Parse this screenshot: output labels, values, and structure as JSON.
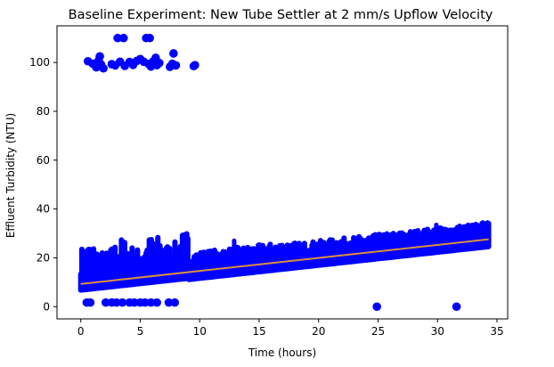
{
  "chart_data": {
    "type": "scatter",
    "title": "Baseline Experiment: New Tube Settler at 2 mm/s Upflow Velocity",
    "xlabel": "Time (hours)",
    "ylabel": "Effluent Turbidity (NTU)",
    "xlim": [
      -2.0,
      35.9
    ],
    "ylim": [
      -5,
      115
    ],
    "xticks": [
      0,
      5,
      10,
      15,
      20,
      25,
      30,
      35
    ],
    "xtick_labels": [
      "0",
      "5",
      "10",
      "15",
      "20",
      "25",
      "30",
      "35"
    ],
    "yticks": [
      0,
      20,
      40,
      60,
      80,
      100
    ],
    "ytick_labels": [
      "0",
      "20",
      "40",
      "60",
      "80",
      "100"
    ],
    "grid": false,
    "legend": "none",
    "series": [
      {
        "role": "measurements",
        "color": "#0000ff",
        "marker": "circle",
        "points": [
          [
            0.6,
            100.5
          ],
          [
            1.0,
            99.5
          ],
          [
            1.3,
            98.0
          ],
          [
            1.5,
            100.8
          ],
          [
            1.6,
            102.5
          ],
          [
            1.7,
            99.2
          ],
          [
            1.9,
            97.6
          ],
          [
            2.6,
            99.3
          ],
          [
            2.9,
            98.8
          ],
          [
            3.1,
            110.0
          ],
          [
            3.3,
            100.3
          ],
          [
            3.6,
            110.0
          ],
          [
            3.7,
            98.6
          ],
          [
            4.1,
            100.2
          ],
          [
            4.4,
            99.0
          ],
          [
            4.7,
            100.6
          ],
          [
            5.0,
            101.4
          ],
          [
            5.3,
            100.3
          ],
          [
            5.5,
            110.0
          ],
          [
            5.7,
            99.4
          ],
          [
            5.8,
            110.0
          ],
          [
            5.9,
            98.3
          ],
          [
            6.1,
            100.5
          ],
          [
            6.3,
            101.9
          ],
          [
            6.4,
            98.9
          ],
          [
            6.6,
            99.8
          ],
          [
            7.5,
            98.2
          ],
          [
            7.7,
            99.5
          ],
          [
            7.8,
            103.7
          ],
          [
            8.0,
            98.8
          ],
          [
            9.5,
            98.5
          ],
          [
            9.6,
            98.9
          ],
          [
            0.5,
            1.7
          ],
          [
            0.8,
            1.7
          ],
          [
            2.1,
            1.7
          ],
          [
            2.6,
            1.7
          ],
          [
            3.0,
            1.7
          ],
          [
            3.5,
            1.7
          ],
          [
            4.1,
            1.7
          ],
          [
            4.5,
            1.7
          ],
          [
            5.0,
            1.7
          ],
          [
            5.4,
            1.7
          ],
          [
            5.9,
            1.7
          ],
          [
            6.4,
            1.7
          ],
          [
            7.4,
            1.7
          ],
          [
            7.9,
            1.7
          ],
          [
            24.9,
            0.0
          ],
          [
            31.6,
            0.0
          ]
        ]
      },
      {
        "role": "trendline",
        "color": "#d9913d",
        "x": [
          0,
          34.3
        ],
        "y": [
          9.3,
          27.6
        ]
      }
    ]
  }
}
